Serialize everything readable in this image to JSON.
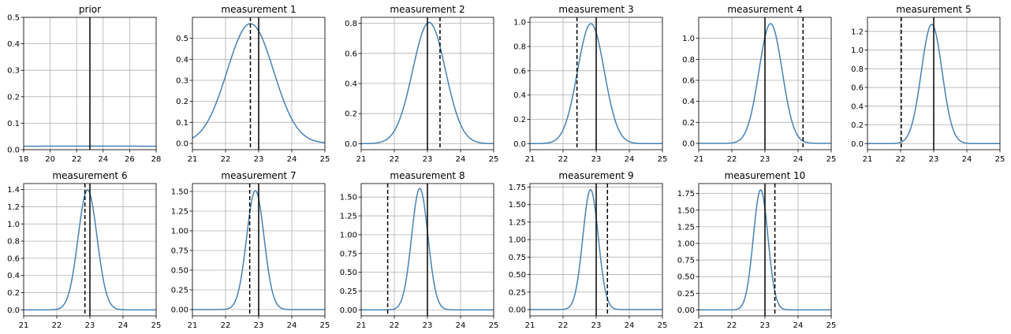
{
  "colors": {
    "curve": "#4682b4",
    "truth_line": "#000000",
    "measurement_line": "#000000",
    "grid": "#b0b0b0",
    "axes": "#000000"
  },
  "chart_data": [
    {
      "type": "line",
      "title": "prior",
      "truth": 23,
      "measurement": null,
      "posterior": {
        "mean": 23,
        "std": 30
      },
      "xlim": [
        18,
        28
      ],
      "ylim": [
        0,
        0.5
      ],
      "xticks": [
        18,
        20,
        22,
        24,
        26,
        28
      ],
      "xtick_labels": [
        "18",
        "20",
        "22",
        "24",
        "26",
        "28"
      ],
      "yticks": [
        0,
        0.1,
        0.2,
        0.3,
        0.4,
        0.5
      ],
      "ytick_labels": [
        "0.0",
        "0.1",
        "0.2",
        "0.3",
        "0.4",
        "0.5"
      ],
      "grid": true
    },
    {
      "type": "line",
      "title": "measurement 1",
      "truth": 23,
      "measurement": 22.75,
      "posterior": {
        "mean": 22.75,
        "std": 0.7
      },
      "xlim": [
        21,
        25
      ],
      "ylim": [
        -0.03,
        0.6
      ],
      "xticks": [
        21,
        22,
        23,
        24,
        25
      ],
      "xtick_labels": [
        "21",
        "22",
        "23",
        "24",
        "25"
      ],
      "yticks": [
        0,
        0.1,
        0.2,
        0.3,
        0.4,
        0.5
      ],
      "ytick_labels": [
        "0.0",
        "0.1",
        "0.2",
        "0.3",
        "0.4",
        "0.5"
      ],
      "grid": true
    },
    {
      "type": "line",
      "title": "measurement 2",
      "truth": 23,
      "measurement": 23.38,
      "posterior": {
        "mean": 23.05,
        "std": 0.495
      },
      "xlim": [
        21,
        25
      ],
      "ylim": [
        -0.04,
        0.84
      ],
      "xticks": [
        21,
        22,
        23,
        24,
        25
      ],
      "xtick_labels": [
        "21",
        "22",
        "23",
        "24",
        "25"
      ],
      "yticks": [
        0,
        0.2,
        0.4,
        0.6,
        0.8
      ],
      "ytick_labels": [
        "0.0",
        "0.2",
        "0.4",
        "0.6",
        "0.8"
      ],
      "grid": true
    },
    {
      "type": "line",
      "title": "measurement 3",
      "truth": 23,
      "measurement": 22.42,
      "posterior": {
        "mean": 22.84,
        "std": 0.404
      },
      "xlim": [
        21,
        25
      ],
      "ylim": [
        -0.05,
        1.04
      ],
      "xticks": [
        21,
        22,
        23,
        24,
        25
      ],
      "xtick_labels": [
        "21",
        "22",
        "23",
        "24",
        "25"
      ],
      "yticks": [
        0,
        0.2,
        0.4,
        0.6,
        0.8,
        1.0
      ],
      "ytick_labels": [
        "0.0",
        "0.2",
        "0.4",
        "0.6",
        "0.8",
        "1.0"
      ],
      "grid": true
    },
    {
      "type": "line",
      "title": "measurement 4",
      "truth": 23,
      "measurement": 24.15,
      "posterior": {
        "mean": 23.17,
        "std": 0.35
      },
      "xlim": [
        21,
        25
      ],
      "ylim": [
        -0.06,
        1.2
      ],
      "xticks": [
        21,
        22,
        23,
        24,
        25
      ],
      "xtick_labels": [
        "21",
        "22",
        "23",
        "24",
        "25"
      ],
      "yticks": [
        0,
        0.2,
        0.4,
        0.6,
        0.8,
        1.0
      ],
      "ytick_labels": [
        "0.0",
        "0.2",
        "0.4",
        "0.6",
        "0.8",
        "1.0"
      ],
      "grid": true
    },
    {
      "type": "line",
      "title": "measurement 5",
      "truth": 23,
      "measurement": 22.02,
      "posterior": {
        "mean": 22.94,
        "std": 0.313
      },
      "xlim": [
        21,
        25
      ],
      "ylim": [
        -0.065,
        1.35
      ],
      "xticks": [
        21,
        22,
        23,
        24,
        25
      ],
      "xtick_labels": [
        "21",
        "22",
        "23",
        "24",
        "25"
      ],
      "yticks": [
        0,
        0.2,
        0.4,
        0.6,
        0.8,
        1.0,
        1.2
      ],
      "ytick_labels": [
        "0.0",
        "0.2",
        "0.4",
        "0.6",
        "0.8",
        "1.0",
        "1.2"
      ],
      "grid": true
    },
    {
      "type": "line",
      "title": "measurement 6",
      "truth": 23,
      "measurement": 22.85,
      "posterior": {
        "mean": 22.93,
        "std": 0.286
      },
      "xlim": [
        21,
        25
      ],
      "ylim": [
        -0.07,
        1.47
      ],
      "xticks": [
        21,
        22,
        23,
        24,
        25
      ],
      "xtick_labels": [
        "21",
        "22",
        "23",
        "24",
        "25"
      ],
      "yticks": [
        0,
        0.2,
        0.4,
        0.6,
        0.8,
        1.0,
        1.2,
        1.4
      ],
      "ytick_labels": [
        "0.0",
        "0.2",
        "0.4",
        "0.6",
        "0.8",
        "1.0",
        "1.2",
        "1.4"
      ],
      "grid": true
    },
    {
      "type": "line",
      "title": "measurement 7",
      "truth": 23,
      "measurement": 22.73,
      "posterior": {
        "mean": 22.9,
        "std": 0.264
      },
      "xlim": [
        21,
        25
      ],
      "ylim": [
        -0.08,
        1.6
      ],
      "xticks": [
        21,
        22,
        23,
        24,
        25
      ],
      "xtick_labels": [
        "21",
        "22",
        "23",
        "24",
        "25"
      ],
      "yticks": [
        0,
        0.25,
        0.5,
        0.75,
        1.0,
        1.25,
        1.5
      ],
      "ytick_labels": [
        "0.00",
        "0.25",
        "0.50",
        "0.75",
        "1.00",
        "1.25",
        "1.50"
      ],
      "grid": true
    },
    {
      "type": "line",
      "title": "measurement 8",
      "truth": 23,
      "measurement": 21.8,
      "posterior": {
        "mean": 22.77,
        "std": 0.247
      },
      "xlim": [
        21,
        25
      ],
      "ylim": [
        -0.08,
        1.68
      ],
      "xticks": [
        21,
        22,
        23,
        24,
        25
      ],
      "xtick_labels": [
        "21",
        "22",
        "23",
        "24",
        "25"
      ],
      "yticks": [
        0,
        0.25,
        0.5,
        0.75,
        1.0,
        1.25,
        1.5
      ],
      "ytick_labels": [
        "0.00",
        "0.25",
        "0.50",
        "0.75",
        "1.00",
        "1.25",
        "1.50"
      ],
      "grid": true
    },
    {
      "type": "line",
      "title": "measurement 9",
      "truth": 23,
      "measurement": 23.34,
      "posterior": {
        "mean": 22.83,
        "std": 0.233
      },
      "xlim": [
        21,
        25
      ],
      "ylim": [
        -0.09,
        1.8
      ],
      "xticks": [
        21,
        22,
        23,
        24,
        25
      ],
      "xtick_labels": [
        "21",
        "22",
        "23",
        "24",
        "25"
      ],
      "yticks": [
        0,
        0.25,
        0.5,
        0.75,
        1.0,
        1.25,
        1.5,
        1.75
      ],
      "ytick_labels": [
        "0.00",
        "0.25",
        "0.50",
        "0.75",
        "1.00",
        "1.25",
        "1.50",
        "1.75"
      ],
      "grid": true
    },
    {
      "type": "line",
      "title": "measurement 10",
      "truth": 23,
      "measurement": 23.3,
      "posterior": {
        "mean": 22.87,
        "std": 0.221
      },
      "xlim": [
        21,
        25
      ],
      "ylim": [
        -0.09,
        1.9
      ],
      "xticks": [
        21,
        22,
        23,
        24,
        25
      ],
      "xtick_labels": [
        "21",
        "22",
        "23",
        "24",
        "25"
      ],
      "yticks": [
        0,
        0.25,
        0.5,
        0.75,
        1.0,
        1.25,
        1.5,
        1.75
      ],
      "ytick_labels": [
        "0.00",
        "0.25",
        "0.50",
        "0.75",
        "1.00",
        "1.25",
        "1.50",
        "1.75"
      ],
      "grid": true
    }
  ]
}
